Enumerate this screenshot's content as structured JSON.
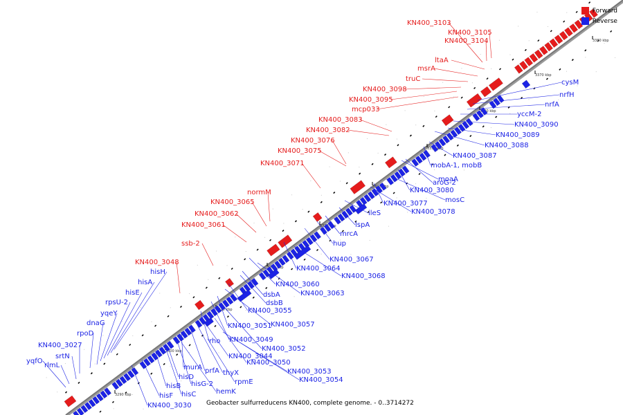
{
  "legend": {
    "forward_label": "Forward",
    "reverse_label": "Reverse",
    "forward_color": "#e51c1c",
    "reverse_color": "#1c23e5"
  },
  "footer": "Geobacter sulfurreducens KN400, complete genome. - 0..3714272",
  "ticks": [
    "3290 kbp",
    "3300 kbp",
    "3310 kbp",
    "3320 kbp",
    "3330 kbp",
    "3340 kbp",
    "3350 kbp",
    "3360 kbp",
    "3370 kbp",
    "3380 kbp"
  ],
  "forward_labels": [
    "KN400_3103",
    "KN400_3105",
    "KN400_3104",
    "ltaA",
    "msrA",
    "truC",
    "KN400_3098",
    "KN400_3095",
    "mcp033",
    "KN400_3083",
    "KN400_3082",
    "KN400_3076",
    "KN400_3075",
    "KN400_3071",
    "normM",
    "KN400_3065",
    "KN400_3062",
    "KN400_3061",
    "ssb-2",
    "KN400_3048"
  ],
  "reverse_labels_top": [
    "cysM",
    "nrfH",
    "nrfA",
    "yccM-2",
    "KN400_3090",
    "KN400_3089",
    "KN400_3088",
    "KN400_3087",
    "mobA-1, mobB",
    "aroG-2",
    "moaA",
    "KN400_3080",
    "mosC",
    "KN400_3077",
    "KN400_3078",
    "ileS",
    "lspA",
    "mrcA",
    "hup",
    "KN400_3067",
    "KN400_3064",
    "KN400_3068",
    "KN400_3060",
    "KN400_3063",
    "dsbA",
    "dsbB",
    "KN400_3055",
    "KN400_3057",
    "KN400_3051",
    "KN400_3049",
    "KN400_3052",
    "rho",
    "KN400_3044",
    "KN400_3050",
    "prfA",
    "thyX",
    "murA",
    "rpmE",
    "KN400_3053",
    "KN400_3054",
    "hisD",
    "hisG-2",
    "hemK",
    "hisB",
    "hisC",
    "hisF",
    "KN400_3030"
  ],
  "reverse_labels_left": [
    "hisH",
    "hisA",
    "hisE",
    "rpsU-2",
    "yqeY",
    "dnaG",
    "rpoD",
    "KN400_3027",
    "srtN",
    "rlmL",
    "yqfO"
  ]
}
